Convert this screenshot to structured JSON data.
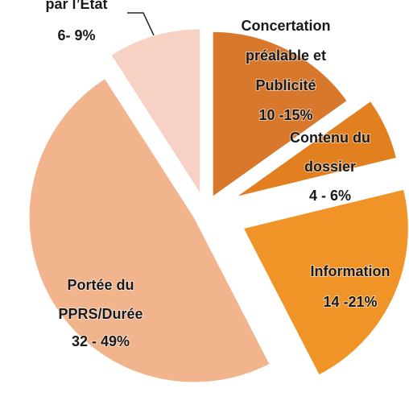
{
  "chart_data": {
    "type": "pie",
    "categories": [
      "Concertation\npréalable et\nPublicité",
      "Contenu du\ndossier",
      "Information",
      "Portée du\nPPRS/Durée",
      "par l’Etat"
    ],
    "values": [
      10,
      4,
      14,
      32,
      6
    ],
    "value_labels": [
      "10 -15%",
      "4 - 6%",
      "14 -21%",
      "32 - 49%",
      "6- 9%"
    ],
    "colors": [
      "#d8782c",
      "#e2801f",
      "#f09428",
      "#f2b48d",
      "#f7d2c4"
    ]
  }
}
